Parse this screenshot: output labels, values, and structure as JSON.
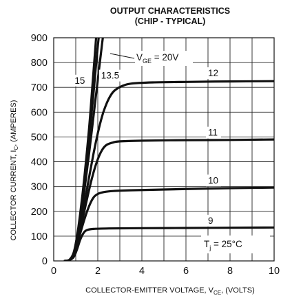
{
  "chart_data": {
    "type": "line",
    "title_line1": "OUTPUT CHARACTERISTICS",
    "title_line2": "(CHIP - TYPICAL)",
    "xlabel": {
      "main": "COLLECTOR-EMITTER VOLTAGE, V",
      "sub": "CE",
      "tail": ", (VOLTS)"
    },
    "ylabel": {
      "main": "COLLECTOR CURRENT, I",
      "sub": "C",
      "tail": ", (AMPERES)"
    },
    "xlim": [
      0,
      10
    ],
    "ylim": [
      0,
      900
    ],
    "x_ticks": [
      0,
      2,
      4,
      6,
      8,
      10
    ],
    "x_tick_labels": [
      "0",
      "2",
      "4",
      "6",
      "8",
      "10"
    ],
    "y_ticks": [
      0,
      100,
      200,
      300,
      400,
      500,
      600,
      700,
      800,
      900
    ],
    "y_tick_labels": [
      "0",
      "100",
      "200",
      "300",
      "400",
      "500",
      "600",
      "700",
      "800",
      "900"
    ],
    "x_grid": [
      0,
      1,
      2,
      3,
      4,
      5,
      6,
      7,
      8,
      9,
      10
    ],
    "y_grid": [
      0,
      100,
      200,
      300,
      400,
      500,
      600,
      700,
      800,
      900
    ],
    "grid": true,
    "annotation": {
      "main": "T",
      "sub": "j",
      "tail": " = 25°C"
    },
    "vge_annotation": {
      "main": "V",
      "sub": "GE",
      "tail": " = 20V"
    },
    "series": [
      {
        "name": "9",
        "label": "9",
        "points": [
          [
            0.5,
            0
          ],
          [
            0.7,
            3
          ],
          [
            0.9,
            15
          ],
          [
            1.05,
            45
          ],
          [
            1.2,
            85
          ],
          [
            1.35,
            112
          ],
          [
            1.5,
            124
          ],
          [
            1.8,
            129
          ],
          [
            2.5,
            131
          ],
          [
            4,
            132
          ],
          [
            6,
            133
          ],
          [
            8,
            134
          ],
          [
            10,
            135
          ]
        ]
      },
      {
        "name": "10",
        "label": "10",
        "points": [
          [
            0.5,
            0
          ],
          [
            0.7,
            3
          ],
          [
            0.9,
            20
          ],
          [
            1.05,
            60
          ],
          [
            1.2,
            110
          ],
          [
            1.4,
            170
          ],
          [
            1.6,
            220
          ],
          [
            1.8,
            255
          ],
          [
            2,
            270
          ],
          [
            2.3,
            278
          ],
          [
            2.7,
            282
          ],
          [
            3.5,
            285
          ],
          [
            5,
            288
          ],
          [
            7,
            292
          ],
          [
            8.5,
            294
          ],
          [
            10,
            296
          ]
        ]
      },
      {
        "name": "11",
        "label": "11",
        "points": [
          [
            0.5,
            0
          ],
          [
            0.7,
            3
          ],
          [
            0.9,
            22
          ],
          [
            1.05,
            65
          ],
          [
            1.2,
            125
          ],
          [
            1.4,
            205
          ],
          [
            1.6,
            285
          ],
          [
            1.8,
            355
          ],
          [
            2,
            410
          ],
          [
            2.2,
            448
          ],
          [
            2.4,
            468
          ],
          [
            2.7,
            478
          ],
          [
            3,
            482
          ],
          [
            4,
            485
          ],
          [
            6,
            487
          ],
          [
            8,
            488
          ],
          [
            10,
            490
          ]
        ]
      },
      {
        "name": "12",
        "label": "12",
        "points": [
          [
            0.5,
            0
          ],
          [
            0.7,
            3
          ],
          [
            0.9,
            25
          ],
          [
            1.05,
            75
          ],
          [
            1.2,
            140
          ],
          [
            1.4,
            235
          ],
          [
            1.6,
            335
          ],
          [
            1.8,
            430
          ],
          [
            2,
            515
          ],
          [
            2.2,
            585
          ],
          [
            2.4,
            635
          ],
          [
            2.6,
            670
          ],
          [
            2.8,
            690
          ],
          [
            3.1,
            705
          ],
          [
            3.5,
            715
          ],
          [
            4.5,
            720
          ],
          [
            6,
            722
          ],
          [
            8,
            724
          ],
          [
            10,
            725
          ]
        ]
      },
      {
        "name": "13.5",
        "label": "13.5",
        "points": [
          [
            0.5,
            0
          ],
          [
            0.7,
            3
          ],
          [
            0.9,
            28
          ],
          [
            1.05,
            85
          ],
          [
            1.2,
            165
          ],
          [
            1.4,
            290
          ],
          [
            1.6,
            430
          ],
          [
            1.8,
            580
          ],
          [
            2,
            730
          ],
          [
            2.2,
            880
          ],
          [
            2.25,
            910
          ]
        ]
      },
      {
        "name": "15",
        "label": "15",
        "points": [
          [
            0.5,
            0
          ],
          [
            0.7,
            3
          ],
          [
            0.9,
            30
          ],
          [
            1.05,
            90
          ],
          [
            1.2,
            180
          ],
          [
            1.4,
            320
          ],
          [
            1.6,
            490
          ],
          [
            1.8,
            670
          ],
          [
            1.95,
            820
          ],
          [
            2.05,
            910
          ]
        ]
      },
      {
        "name": "20",
        "label": "",
        "points": [
          [
            0.5,
            0
          ],
          [
            0.7,
            3
          ],
          [
            0.9,
            32
          ],
          [
            1.05,
            95
          ],
          [
            1.2,
            190
          ],
          [
            1.4,
            345
          ],
          [
            1.6,
            530
          ],
          [
            1.75,
            700
          ],
          [
            1.88,
            850
          ],
          [
            1.93,
            910
          ]
        ]
      }
    ]
  }
}
